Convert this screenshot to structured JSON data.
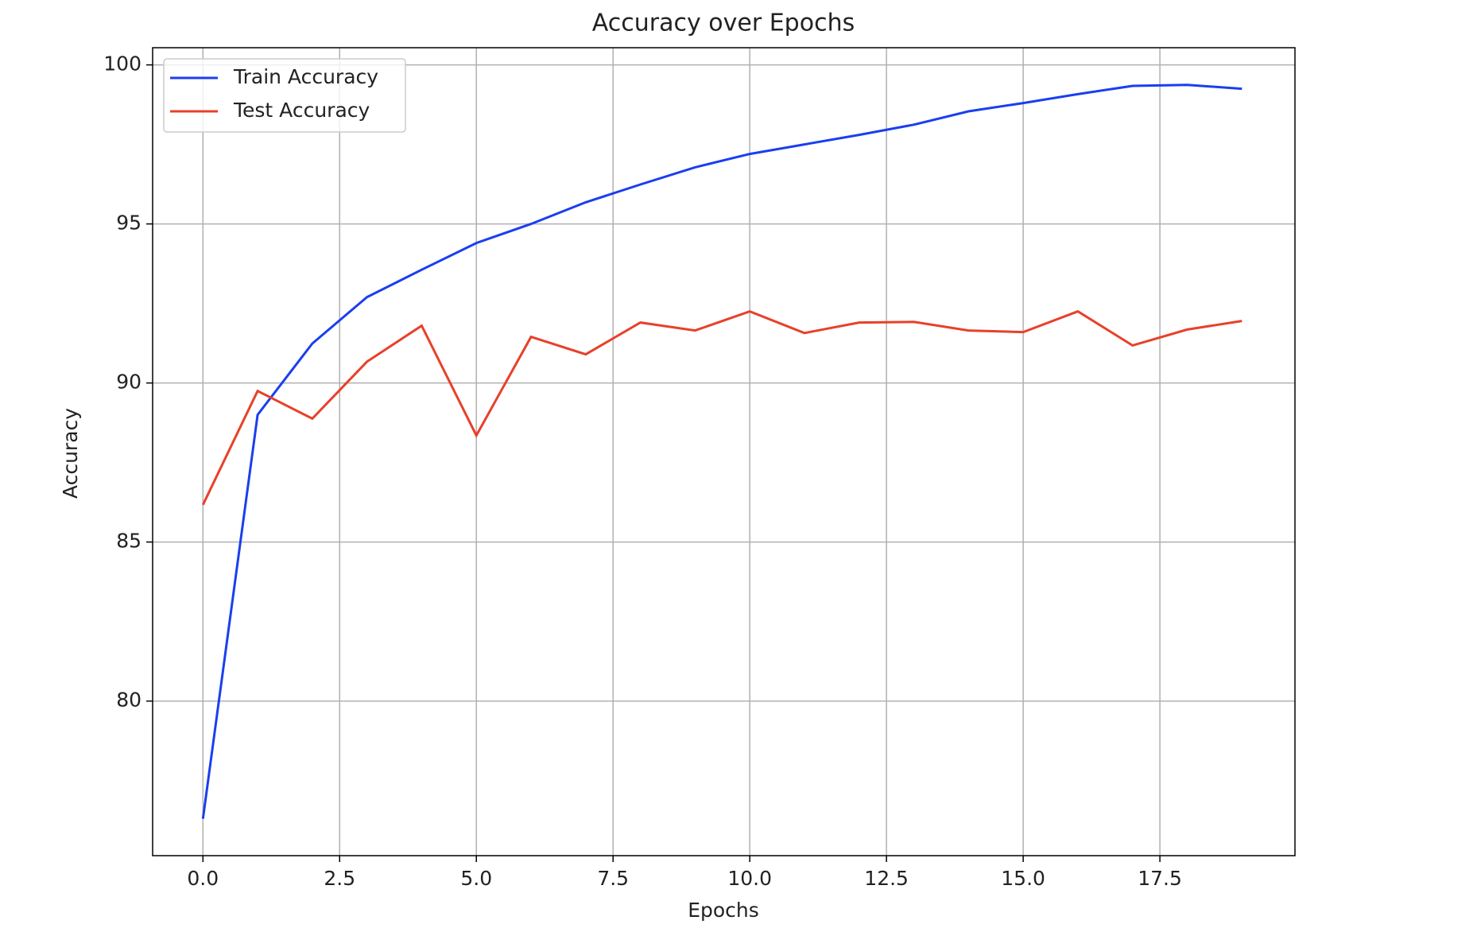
{
  "chart_data": {
    "type": "line",
    "title": "Accuracy over Epochs",
    "x_label": "Epochs",
    "y_label": "Accuracy",
    "x": [
      0,
      1,
      2,
      3,
      4,
      5,
      6,
      7,
      8,
      9,
      10,
      11,
      12,
      13,
      14,
      15,
      16,
      17,
      18,
      19
    ],
    "series": [
      {
        "name": "Train Accuracy",
        "color": "#1a3ef0",
        "values": [
          76.3,
          89.0,
          91.24,
          92.7,
          93.56,
          94.4,
          95.0,
          95.68,
          96.24,
          96.78,
          97.2,
          97.5,
          97.8,
          98.12,
          98.54,
          98.8,
          99.08,
          99.34,
          99.37,
          99.25
        ]
      },
      {
        "name": "Test Accuracy",
        "color": "#e8402a",
        "values": [
          86.17,
          89.75,
          88.88,
          90.67,
          91.8,
          88.35,
          91.45,
          90.9,
          91.9,
          91.65,
          92.25,
          91.57,
          91.9,
          91.92,
          91.65,
          91.6,
          92.25,
          91.18,
          91.68,
          91.95
        ]
      }
    ],
    "xlim": [
      -0.92,
      19.97
    ],
    "ylim": [
      75.14,
      100.54
    ],
    "xticks": [
      {
        "value": 0,
        "label": "0.0"
      },
      {
        "value": 2.5,
        "label": "2.5"
      },
      {
        "value": 5,
        "label": "5.0"
      },
      {
        "value": 7.5,
        "label": "7.5"
      },
      {
        "value": 10,
        "label": "10.0"
      },
      {
        "value": 12.5,
        "label": "12.5"
      },
      {
        "value": 15,
        "label": "15.0"
      },
      {
        "value": 17.5,
        "label": "17.5"
      }
    ],
    "yticks": [
      80,
      85,
      90,
      95,
      100
    ],
    "grid": true,
    "legend": "upper left"
  }
}
